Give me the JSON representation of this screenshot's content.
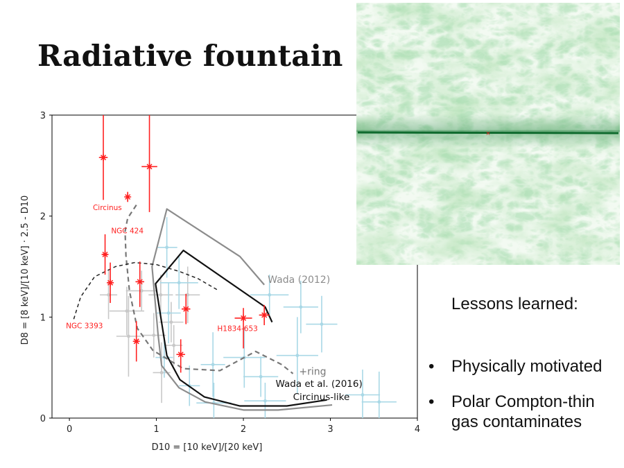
{
  "slide": {
    "title": "Radiative fountain",
    "lessons_title": "Lessons learned:",
    "bullets": [
      {
        "lines": [
          "Physically motivated"
        ]
      },
      {
        "lines": [
          "Polar Compton-thin",
          "gas contaminates"
        ]
      }
    ]
  },
  "colors": {
    "sources_red": "#ff2020",
    "model_cyan": "#a9d8e6",
    "model_gray": "#c8c8c8",
    "wada2012": "#8c8c8c",
    "wada2016_thick": "#111111",
    "ring": "#777777",
    "ngc3393_curve": "#222222"
  },
  "simulation": {
    "description_icon": "green-gas-simulation-image",
    "marker": "×"
  },
  "chart_data": {
    "type": "scatter",
    "xlabel": "D10 = [10 keV]/[20 keV]",
    "ylabel": "D8 = [8 keV]/[10 keV] · 2.5 - D10",
    "xlim": [
      -0.2,
      4.0
    ],
    "ylim": [
      0,
      3
    ],
    "x_ticks": [
      0,
      1,
      2,
      3,
      4
    ],
    "y_ticks": [
      0,
      1,
      2,
      3
    ],
    "sources": [
      {
        "x": 0.39,
        "y": 2.58,
        "xerr": 0.05,
        "yerr": [
          0.42,
          0.5
        ]
      },
      {
        "x": 0.92,
        "y": 2.49,
        "xerr": 0.09,
        "yerr": [
          0.45,
          0.51
        ]
      },
      {
        "x": 0.67,
        "y": 2.19,
        "xerr": 0.02,
        "yerr": [
          0.05,
          0.05
        ]
      },
      {
        "x": 0.41,
        "y": 1.62,
        "xerr": 0.03,
        "yerr": [
          0.2,
          0.2
        ]
      },
      {
        "x": 0.47,
        "y": 1.34,
        "xerr": 0.04,
        "yerr": [
          0.2,
          0.2
        ]
      },
      {
        "x": 0.81,
        "y": 1.35,
        "xerr": 0.05,
        "yerr": [
          0.25,
          0.2
        ]
      },
      {
        "x": 1.34,
        "y": 1.08,
        "xerr": 0.05,
        "yerr": [
          0.15,
          0.15
        ]
      },
      {
        "x": 0.77,
        "y": 0.76,
        "xerr": 0.03,
        "yerr": [
          0.2,
          0.2
        ]
      },
      {
        "x": 1.28,
        "y": 0.63,
        "xerr": 0.05,
        "yerr": [
          0.18,
          0.15
        ]
      },
      {
        "x": 2.0,
        "y": 0.99,
        "xerr": 0.1,
        "yerr": [
          0.3,
          0.1
        ]
      },
      {
        "x": 2.24,
        "y": 1.02,
        "xerr": 0.06,
        "yerr": [
          0.1,
          0.1
        ]
      }
    ],
    "source_labels": [
      {
        "text": "Circinus",
        "x": 0.27,
        "y": 2.06
      },
      {
        "text": "NGC 424",
        "x": 0.48,
        "y": 1.83
      },
      {
        "text": "NGC 3393",
        "x": -0.04,
        "y": 0.89
      },
      {
        "text": "H1834-653",
        "x": 1.7,
        "y": 0.86
      }
    ],
    "cyan_points": [
      {
        "x": 1.12,
        "y": 1.69,
        "xerr": 0.12,
        "yerr": 0.3
      },
      {
        "x": 1.26,
        "y": 1.34,
        "xerr": 0.22,
        "yerr": 0.26
      },
      {
        "x": 2.3,
        "y": 1.22,
        "xerr": 0.22,
        "yerr": 0.2
      },
      {
        "x": 2.66,
        "y": 1.1,
        "xerr": 0.2,
        "yerr": 0.26
      },
      {
        "x": 2.9,
        "y": 0.93,
        "xerr": 0.18,
        "yerr": 0.28
      },
      {
        "x": 2.01,
        "y": 0.6,
        "xerr": 0.24,
        "yerr": 0.3
      },
      {
        "x": 1.65,
        "y": 0.53,
        "xerr": 0.14,
        "yerr": 0.32
      },
      {
        "x": 2.2,
        "y": 0.41,
        "xerr": 0.2,
        "yerr": 0.2
      },
      {
        "x": 2.62,
        "y": 0.62,
        "xerr": 0.24,
        "yerr": 0.38
      },
      {
        "x": 3.37,
        "y": 0.23,
        "xerr": 0.2,
        "yerr": 0.25
      },
      {
        "x": 3.56,
        "y": 0.16,
        "xerr": 0.2,
        "yerr": 0.3
      },
      {
        "x": 2.25,
        "y": 0.17,
        "xerr": 0.24,
        "yerr": 0.18
      },
      {
        "x": 1.66,
        "y": 0.15,
        "xerr": 0.2,
        "yerr": 0.2
      },
      {
        "x": 1.14,
        "y": 1.04,
        "xerr": 0.14,
        "yerr": 0.3
      },
      {
        "x": 1.38,
        "y": 0.32,
        "xerr": 0.12,
        "yerr": 0.2
      },
      {
        "x": 1.09,
        "y": 0.6,
        "xerr": 0.1,
        "yerr": 0.2
      }
    ],
    "gray_points": [
      {
        "x": 0.45,
        "y": 1.22,
        "xerr": 0.1,
        "yerr": 0.24
      },
      {
        "x": 0.66,
        "y": 1.06,
        "xerr": 0.2,
        "yerr": 0.24
      },
      {
        "x": 0.83,
        "y": 1.26,
        "xerr": 0.18,
        "yerr": 0.2
      },
      {
        "x": 1.05,
        "y": 1.22,
        "xerr": 0.14,
        "yerr": 0.2
      },
      {
        "x": 1.36,
        "y": 1.22,
        "xerr": 0.14,
        "yerr": 0.28
      },
      {
        "x": 0.68,
        "y": 0.81,
        "xerr": 0.14,
        "yerr": 0.4
      },
      {
        "x": 0.97,
        "y": 0.82,
        "xerr": 0.14,
        "yerr": 0.22
      },
      {
        "x": 1.17,
        "y": 0.95,
        "xerr": 0.14,
        "yerr": 0.2
      },
      {
        "x": 1.06,
        "y": 0.45,
        "xerr": 0.1,
        "yerr": 0.3
      },
      {
        "x": 1.2,
        "y": 0.72,
        "xerr": 0.1,
        "yerr": 0.2
      }
    ],
    "series": [
      {
        "name": "Wada (2012)",
        "style": "gray-solid",
        "x": [
          2.24,
          2.12,
          1.96,
          1.12,
          0.95,
          1.02,
          1.06,
          1.26,
          1.56,
          2.0,
          2.4,
          3.02
        ],
        "y": [
          1.32,
          1.44,
          1.6,
          2.07,
          1.5,
          0.82,
          0.52,
          0.3,
          0.16,
          0.08,
          0.08,
          0.13
        ],
        "label_at": {
          "x": 2.28,
          "y": 1.34
        }
      },
      {
        "name": "Wada et al. (2016)",
        "style": "black-solid",
        "x": [
          2.33,
          2.25,
          1.31,
          0.99,
          1.12,
          1.27,
          1.55,
          1.96,
          2.5,
          2.96
        ],
        "y": [
          0.95,
          1.1,
          1.66,
          1.33,
          0.62,
          0.38,
          0.21,
          0.12,
          0.12,
          0.18
        ],
        "label_at": {
          "x": 2.37,
          "y": 0.31
        }
      },
      {
        "name": "Circinus-like",
        "style": "label-only",
        "label_at": {
          "x": 2.57,
          "y": 0.18
        }
      },
      {
        "name": "+ring",
        "style": "gray-dashed",
        "x": [
          0.77,
          0.67,
          0.64,
          0.65,
          0.69,
          0.78,
          0.96,
          1.31,
          1.73,
          2.14,
          2.44,
          2.57
        ],
        "y": [
          2.11,
          1.98,
          1.85,
          1.61,
          1.26,
          0.89,
          0.67,
          0.49,
          0.47,
          0.66,
          0.53,
          0.44
        ],
        "label_at": {
          "x": 2.64,
          "y": 0.43
        }
      },
      {
        "name": "NGC 3393",
        "style": "black-dashed",
        "x": [
          0.05,
          0.13,
          0.29,
          0.53,
          0.75,
          1.0,
          1.27,
          1.48,
          1.7
        ],
        "y": [
          0.98,
          1.2,
          1.4,
          1.5,
          1.54,
          1.52,
          1.45,
          1.38,
          1.27
        ]
      }
    ]
  }
}
